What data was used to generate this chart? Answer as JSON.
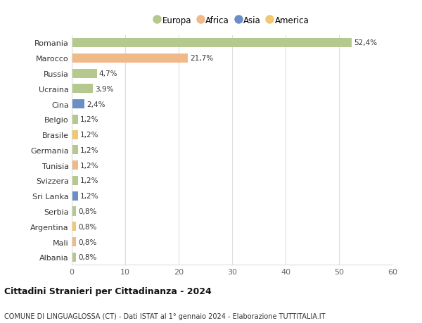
{
  "categories": [
    "Romania",
    "Marocco",
    "Russia",
    "Ucraina",
    "Cina",
    "Belgio",
    "Brasile",
    "Germania",
    "Tunisia",
    "Svizzera",
    "Sri Lanka",
    "Serbia",
    "Argentina",
    "Mali",
    "Albania"
  ],
  "values": [
    52.4,
    21.7,
    4.7,
    3.9,
    2.4,
    1.2,
    1.2,
    1.2,
    1.2,
    1.2,
    1.2,
    0.8,
    0.8,
    0.8,
    0.8
  ],
  "labels": [
    "52,4%",
    "21,7%",
    "4,7%",
    "3,9%",
    "2,4%",
    "1,2%",
    "1,2%",
    "1,2%",
    "1,2%",
    "1,2%",
    "1,2%",
    "0,8%",
    "0,8%",
    "0,8%",
    "0,8%"
  ],
  "colors": [
    "#b5c98e",
    "#f0b98a",
    "#b5c98e",
    "#b5c98e",
    "#6b8ec7",
    "#b5c98e",
    "#f0c870",
    "#b5c98e",
    "#f0b98a",
    "#b5c98e",
    "#6b8ec7",
    "#b5c98e",
    "#f0c870",
    "#f0b98a",
    "#b5c98e"
  ],
  "legend_labels": [
    "Europa",
    "Africa",
    "Asia",
    "America"
  ],
  "legend_colors": [
    "#b5c98e",
    "#f0b98a",
    "#6b8ec7",
    "#f0c870"
  ],
  "title": "Cittadini Stranieri per Cittadinanza - 2024",
  "subtitle": "COMUNE DI LINGUAGLOSSA (CT) - Dati ISTAT al 1° gennaio 2024 - Elaborazione TUTTITALIA.IT",
  "xlim": [
    0,
    60
  ],
  "xticks": [
    0,
    10,
    20,
    30,
    40,
    50,
    60
  ],
  "background_color": "#ffffff",
  "grid_color": "#dddddd",
  "bar_height": 0.6
}
